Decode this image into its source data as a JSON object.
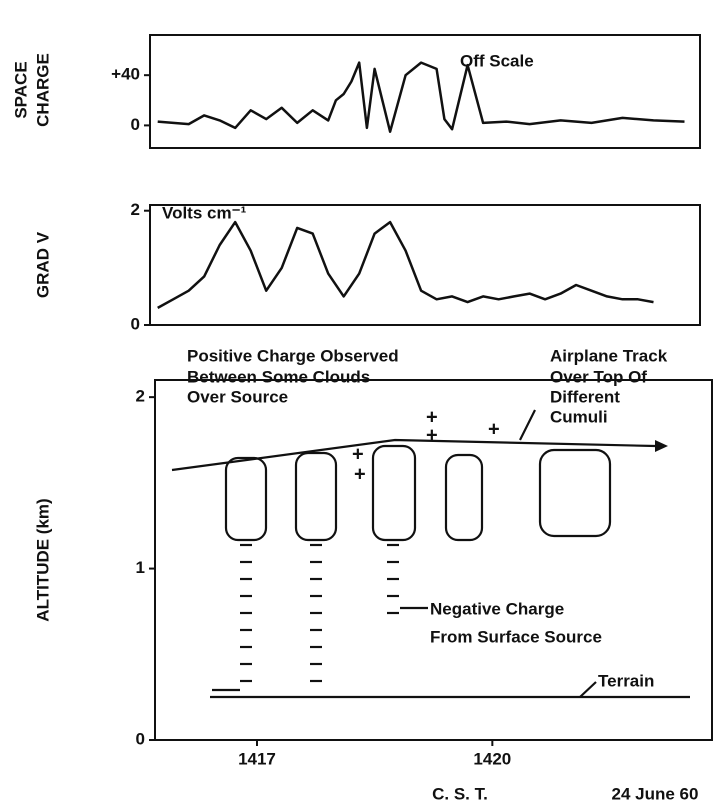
{
  "chart_data": [
    {
      "type": "line",
      "ylabel": [
        "SPACE",
        "CHARGE"
      ],
      "annotation": "Off Scale",
      "xlim": [
        1415.7,
        1422.8
      ],
      "ylim": [
        -18,
        72
      ],
      "yticks": [
        0,
        {
          "value": 40,
          "label": "+40"
        }
      ],
      "series": [
        {
          "name": "Space charge",
          "color": "#111111",
          "x": [
            1415.8,
            1416.0,
            1416.2,
            1416.4,
            1416.6,
            1416.8,
            1417.0,
            1417.2,
            1417.4,
            1417.6,
            1417.8,
            1418.0,
            1418.1,
            1418.2,
            1418.3,
            1418.4,
            1418.5,
            1418.6,
            1418.8,
            1419.0,
            1419.2,
            1419.4,
            1419.5,
            1419.6,
            1419.8,
            1420.0,
            1420.3,
            1420.6,
            1421.0,
            1421.4,
            1421.8,
            1422.2,
            1422.6
          ],
          "values": [
            3,
            2,
            1,
            8,
            4,
            -2,
            12,
            5,
            14,
            2,
            12,
            4,
            20,
            25,
            35,
            50,
            -2,
            45,
            -5,
            40,
            50,
            45,
            5,
            -3,
            48,
            2,
            3,
            1,
            4,
            2,
            6,
            4,
            3
          ]
        }
      ]
    },
    {
      "type": "line",
      "ylabel": [
        "GRAD V"
      ],
      "annotation": "Volts cm⁻¹",
      "xlim": [
        1415.7,
        1422.8
      ],
      "ylim": [
        0,
        2.1
      ],
      "yticks": [
        0,
        2
      ],
      "series": [
        {
          "name": "Grad V",
          "color": "#111111",
          "x": [
            1415.8,
            1416.0,
            1416.2,
            1416.4,
            1416.6,
            1416.8,
            1417.0,
            1417.2,
            1417.4,
            1417.6,
            1417.8,
            1418.0,
            1418.2,
            1418.4,
            1418.6,
            1418.8,
            1419.0,
            1419.2,
            1419.4,
            1419.6,
            1419.8,
            1420.0,
            1420.2,
            1420.4,
            1420.6,
            1420.8,
            1421.0,
            1421.2,
            1421.4,
            1421.6,
            1421.8,
            1422.0,
            1422.2
          ],
          "values": [
            0.3,
            0.45,
            0.6,
            0.85,
            1.4,
            1.8,
            1.3,
            0.6,
            1.0,
            1.7,
            1.6,
            0.9,
            0.5,
            0.9,
            1.6,
            1.8,
            1.3,
            0.6,
            0.45,
            0.5,
            0.4,
            0.5,
            0.45,
            0.5,
            0.55,
            0.45,
            0.55,
            0.7,
            0.6,
            0.5,
            0.45,
            0.45,
            0.4
          ]
        }
      ]
    },
    {
      "type": "line",
      "ylabel": [
        "ALTITUDE (km)"
      ],
      "xlabel": "C. S. T.",
      "date": "24 June 60",
      "xlim": [
        1415.7,
        1422.8
      ],
      "ylim": [
        0,
        2.1
      ],
      "yticks": [
        0,
        1,
        2
      ],
      "xticks": [
        1417,
        1420
      ],
      "annotations": [
        {
          "lines": [
            "Positive Charge Observed",
            "Between Some Clouds",
            "Over Source"
          ]
        },
        {
          "lines": [
            "Airplane Track",
            "Over Top Of",
            "Different",
            "Cumuli"
          ]
        },
        {
          "lines": [
            "Negative Charge",
            "From Surface Source"
          ]
        },
        {
          "lines": [
            "Terrain"
          ]
        }
      ]
    }
  ]
}
